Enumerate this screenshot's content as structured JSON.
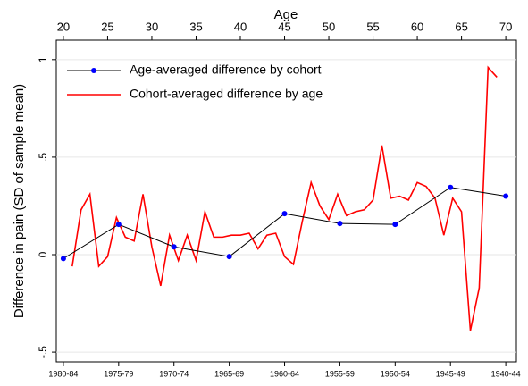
{
  "chart_data": {
    "type": "line",
    "xlabel": "Age",
    "ylabel": "Difference in pain (SD of sample mean)",
    "xlim": [
      19.2,
      71.2
    ],
    "xticks": [
      20,
      25,
      30,
      35,
      40,
      45,
      50,
      55,
      60,
      65,
      70
    ],
    "ylim": [
      -0.55,
      1.1
    ],
    "yticks": [
      {
        "value": -0.5,
        "label": "-.5"
      },
      0,
      {
        "value": 0.5,
        "label": ".5"
      },
      1
    ],
    "grid": true,
    "legend": "top-left",
    "categories": [
      "1980-84",
      "1975-79",
      "1970-74",
      "1965-69",
      "1960-64",
      "1955-59",
      "1950-54",
      "1945-49",
      "1940-44"
    ],
    "series": [
      {
        "name": "Age-averaged difference by cohort",
        "color": "#000000",
        "marker_color": "#0000ff",
        "values": [
          -0.02,
          0.155,
          0.04,
          -0.01,
          0.21,
          0.16,
          0.155,
          0.345,
          0.3
        ]
      },
      {
        "name": "Cohort-averaged difference by age",
        "color": "#ff0000",
        "x": [
          21,
          22,
          23,
          24,
          25,
          26,
          27,
          28,
          29,
          30,
          31,
          32,
          33,
          34,
          35,
          36,
          37,
          38,
          39,
          40,
          41,
          42,
          43,
          44,
          45,
          46,
          47,
          48,
          49,
          50,
          51,
          52,
          53,
          54,
          55,
          56,
          57,
          58,
          59,
          60,
          61,
          62,
          63,
          64,
          65,
          66,
          67,
          68,
          69
        ],
        "values": [
          -0.06,
          0.23,
          0.31,
          -0.06,
          -0.01,
          0.19,
          0.09,
          0.07,
          0.31,
          0.04,
          -0.16,
          0.1,
          -0.03,
          0.1,
          -0.03,
          0.22,
          0.09,
          0.09,
          0.1,
          0.1,
          0.11,
          0.03,
          0.1,
          0.11,
          -0.01,
          -0.05,
          0.17,
          0.37,
          0.25,
          0.18,
          0.31,
          0.2,
          0.22,
          0.23,
          0.28,
          0.56,
          0.29,
          0.3,
          0.28,
          0.37,
          0.35,
          0.29,
          0.1,
          0.29,
          0.22,
          -0.39,
          -0.17,
          0.96,
          0.91
        ]
      }
    ]
  }
}
